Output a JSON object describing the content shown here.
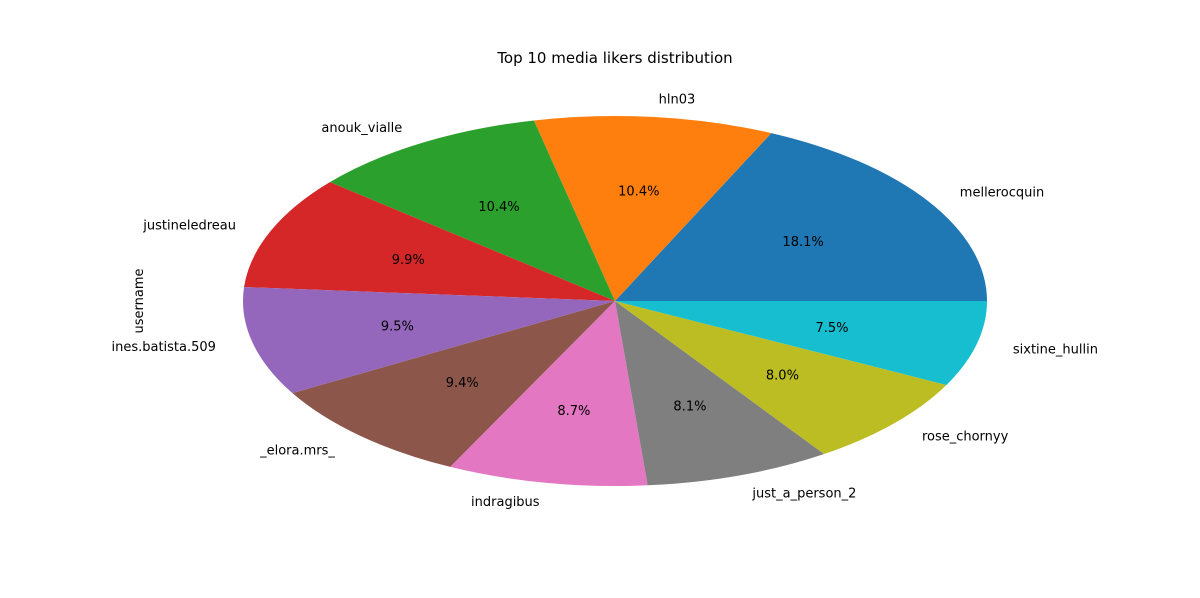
{
  "chart_data": {
    "type": "pie",
    "title": "Top 10 media likers distribution",
    "ylabel": "username",
    "categories": [
      "mellerocquin",
      "hln03",
      "anouk_vialle",
      "justineledreau",
      "ines.batista.509",
      "_elora.mrs_",
      "indragibus",
      "just_a_person_2",
      "rose_chornyy",
      "sixtine_hullin"
    ],
    "values": [
      18.1,
      10.4,
      10.4,
      9.9,
      9.5,
      9.4,
      8.7,
      8.1,
      8.0,
      7.5
    ],
    "percent_labels": [
      "18.1%",
      "10.4%",
      "10.4%",
      "9.9%",
      "9.5%",
      "9.4%",
      "8.7%",
      "8.1%",
      "8.0%",
      "7.5%"
    ],
    "colors": [
      "#1f77b4",
      "#ff7f0e",
      "#2ca02c",
      "#d62728",
      "#9467bd",
      "#8c564b",
      "#e377c2",
      "#7f7f7f",
      "#bcbd22",
      "#17becf"
    ],
    "start_angle_deg": 0,
    "direction": "counterclockwise",
    "legend": "none"
  }
}
